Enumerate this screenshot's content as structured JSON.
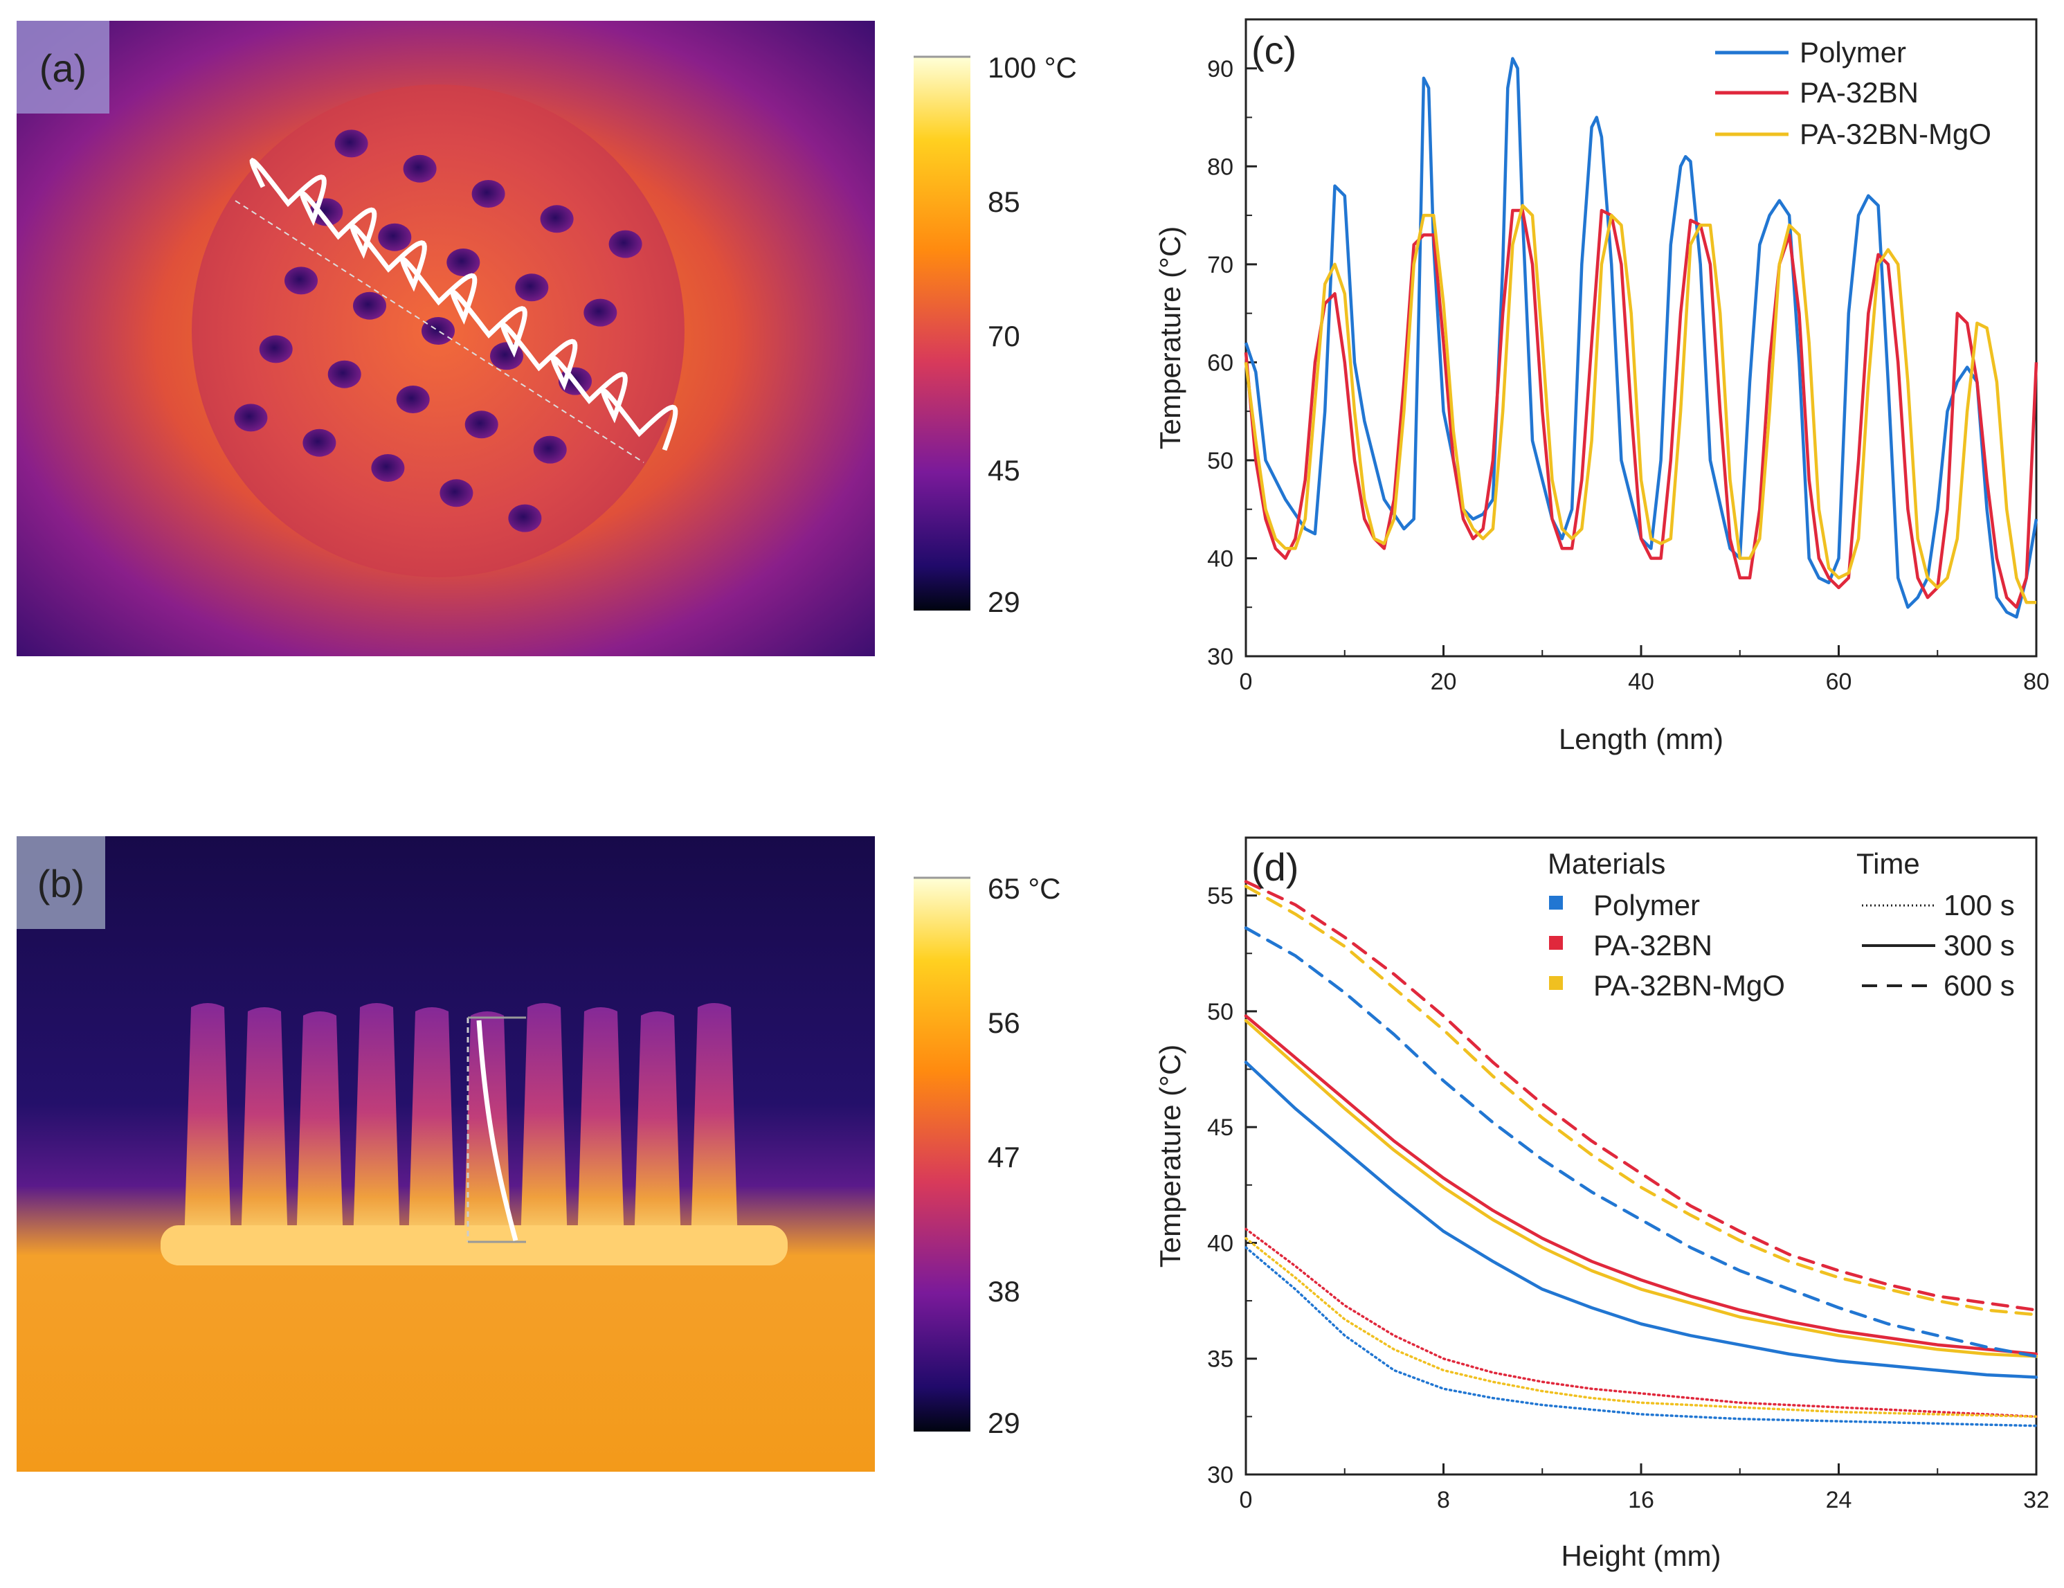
{
  "panels": {
    "a": {
      "tag": "(a)"
    },
    "b": {
      "tag": "(b)"
    },
    "c": {
      "tag": "(c)"
    },
    "d": {
      "tag": "(d)"
    }
  },
  "colorbar_a": {
    "labels": [
      "100 °C",
      "85",
      "70",
      "45",
      "29"
    ]
  },
  "colorbar_b": {
    "labels": [
      "65 °C",
      "56",
      "47",
      "38",
      "29"
    ]
  },
  "colors": {
    "polymer": "#2176d2",
    "pa32bn": "#e0283c",
    "pa32bnmgo": "#f0c020"
  },
  "chart_data": [
    {
      "id": "c",
      "type": "line",
      "xlabel": "Length (mm)",
      "ylabel": "Temperature (°C)",
      "xlim": [
        0,
        80
      ],
      "ylim": [
        30,
        95
      ],
      "xticks": [
        0,
        20,
        40,
        60,
        80
      ],
      "yticks": [
        30,
        40,
        50,
        60,
        70,
        80,
        90
      ],
      "legend": "top-right",
      "series": [
        {
          "name": "Polymer",
          "color": "#2176d2",
          "x": [
            0,
            1,
            2,
            4,
            6,
            7,
            8,
            9,
            10,
            11,
            12,
            14,
            16,
            17,
            17.5,
            18,
            18.5,
            19,
            20,
            22,
            23,
            24,
            25,
            26,
            26.5,
            27,
            27.5,
            28,
            29,
            31,
            32,
            33,
            34,
            35,
            35.5,
            36,
            37,
            38,
            40,
            41,
            42,
            43,
            44,
            44.5,
            45,
            46,
            47,
            49,
            50,
            51,
            52,
            53,
            54,
            55,
            56,
            57,
            58,
            59,
            60,
            61,
            62,
            63,
            64,
            65,
            66,
            67,
            68,
            69,
            70,
            71,
            72,
            73,
            74,
            75,
            76,
            77,
            78,
            79,
            80
          ],
          "y": [
            62,
            59,
            50,
            46,
            43,
            42.5,
            55,
            78,
            77,
            60,
            54,
            46,
            43,
            44,
            65,
            89,
            88,
            72,
            55,
            45,
            44,
            44.5,
            46,
            70,
            88,
            91,
            90,
            75,
            52,
            44,
            42,
            45,
            70,
            84,
            85,
            83,
            70,
            50,
            42,
            41,
            50,
            72,
            80,
            81,
            80.5,
            70,
            50,
            41,
            40,
            58,
            72,
            75,
            76.5,
            75,
            60,
            40,
            38,
            37.5,
            40,
            65,
            75,
            77,
            76,
            58,
            38,
            35,
            36,
            38,
            45,
            55,
            58,
            59.5,
            58,
            45,
            36,
            34.5,
            34,
            38,
            44
          ]
        },
        {
          "name": "PA-32BN",
          "color": "#e0283c",
          "x": [
            0,
            1,
            2,
            3,
            4,
            5,
            6,
            7,
            8,
            9,
            10,
            11,
            12,
            13,
            14,
            15,
            16,
            17,
            18,
            19,
            20,
            21,
            22,
            23,
            24,
            25,
            26,
            27,
            28,
            29,
            30,
            31,
            32,
            33,
            34,
            35,
            36,
            37,
            38,
            39,
            40,
            41,
            42,
            43,
            44,
            45,
            46,
            47,
            48,
            49,
            50,
            51,
            52,
            53,
            54,
            55,
            56,
            57,
            58,
            59,
            60,
            61,
            62,
            63,
            64,
            65,
            66,
            67,
            68,
            69,
            70,
            71,
            72,
            73,
            74,
            75,
            76,
            77,
            78,
            79,
            80
          ],
          "y": [
            61,
            50,
            44,
            41,
            40,
            42,
            48,
            60,
            66,
            67,
            60,
            50,
            44,
            42,
            41,
            46,
            58,
            72,
            73,
            73,
            62,
            50,
            44,
            42,
            43,
            50,
            65,
            75.5,
            75.5,
            70,
            55,
            44,
            41,
            41,
            48,
            62,
            75.5,
            75,
            70,
            55,
            42,
            40,
            40,
            50,
            65,
            74.5,
            74,
            70,
            55,
            42,
            38,
            38,
            45,
            60,
            70,
            73,
            65,
            48,
            40,
            38,
            37,
            38,
            50,
            65,
            71,
            70,
            60,
            45,
            38,
            36,
            37,
            45,
            65,
            64,
            58,
            48,
            40,
            36,
            35,
            38,
            60
          ]
        },
        {
          "name": "PA-32BN-MgO",
          "color": "#f0c020",
          "x": [
            0,
            1,
            2,
            3,
            4,
            5,
            6,
            7,
            8,
            9,
            10,
            11,
            12,
            13,
            14,
            15,
            16,
            17,
            18,
            19,
            20,
            21,
            22,
            23,
            24,
            25,
            26,
            27,
            28,
            29,
            30,
            31,
            32,
            33,
            34,
            35,
            36,
            37,
            38,
            39,
            40,
            41,
            42,
            43,
            44,
            45,
            46,
            47,
            48,
            49,
            50,
            51,
            52,
            53,
            54,
            55,
            56,
            57,
            58,
            59,
            60,
            61,
            62,
            63,
            64,
            65,
            66,
            67,
            68,
            69,
            70,
            71,
            72,
            73,
            74,
            75,
            76,
            77,
            78,
            79,
            80
          ],
          "y": [
            60,
            52,
            45,
            42,
            41,
            41,
            44,
            56,
            68,
            70,
            67,
            55,
            46,
            42,
            41.5,
            44,
            55,
            70,
            75,
            75,
            66,
            53,
            45,
            43,
            42,
            43,
            55,
            72,
            76,
            75,
            62,
            48,
            43,
            42,
            43,
            52,
            70,
            75,
            74,
            65,
            48,
            42,
            41.5,
            42,
            55,
            72,
            74,
            74,
            65,
            48,
            40,
            40,
            42,
            55,
            70,
            74,
            73,
            62,
            45,
            39,
            38,
            38.5,
            42,
            58,
            70,
            71.5,
            70,
            58,
            42,
            38,
            37,
            38,
            42,
            55,
            64,
            63.5,
            58,
            45,
            38,
            35.5,
            35.5
          ]
        }
      ]
    },
    {
      "id": "d",
      "type": "line",
      "xlabel": "Height (mm)",
      "ylabel": "Temperature (°C)",
      "xlim": [
        0,
        32
      ],
      "ylim": [
        30,
        57.5
      ],
      "xticks": [
        0,
        8,
        16,
        24,
        32
      ],
      "yticks": [
        30,
        35,
        40,
        45,
        50,
        55
      ],
      "legend": "top-right",
      "legend_materials_title": "Materials",
      "legend_time_title": "Time",
      "materials": [
        "Polymer",
        "PA-32BN",
        "PA-32BN-MgO"
      ],
      "times": [
        "100 s",
        "300 s",
        "600 s"
      ],
      "x": [
        0,
        2,
        4,
        6,
        8,
        10,
        12,
        14,
        16,
        18,
        20,
        22,
        24,
        26,
        28,
        30,
        32
      ],
      "series": [
        {
          "name": "Polymer 100 s",
          "material": "Polymer",
          "time": "100 s",
          "color": "#2176d2",
          "y": [
            39.8,
            38.0,
            36.0,
            34.5,
            33.7,
            33.3,
            33.0,
            32.8,
            32.6,
            32.5,
            32.4,
            32.35,
            32.3,
            32.25,
            32.2,
            32.15,
            32.1
          ]
        },
        {
          "name": "PA-32BN 100 s",
          "material": "PA-32BN",
          "time": "100 s",
          "color": "#e0283c",
          "y": [
            40.6,
            39.0,
            37.3,
            36.0,
            35.0,
            34.4,
            34.0,
            33.7,
            33.5,
            33.3,
            33.1,
            33.0,
            32.9,
            32.8,
            32.7,
            32.6,
            32.5
          ]
        },
        {
          "name": "PA-32BN-MgO 100 s",
          "material": "PA-32BN-MgO",
          "time": "100 s",
          "color": "#f0c020",
          "y": [
            40.2,
            38.5,
            36.7,
            35.4,
            34.5,
            34.0,
            33.6,
            33.3,
            33.1,
            33.0,
            32.9,
            32.8,
            32.7,
            32.65,
            32.6,
            32.55,
            32.5
          ]
        },
        {
          "name": "Polymer 300 s",
          "material": "Polymer",
          "time": "300 s",
          "color": "#2176d2",
          "y": [
            47.8,
            45.8,
            44.0,
            42.2,
            40.5,
            39.2,
            38.0,
            37.2,
            36.5,
            36.0,
            35.6,
            35.2,
            34.9,
            34.7,
            34.5,
            34.3,
            34.2
          ]
        },
        {
          "name": "PA-32BN 300 s",
          "material": "PA-32BN",
          "time": "300 s",
          "color": "#e0283c",
          "y": [
            49.8,
            48.0,
            46.2,
            44.4,
            42.8,
            41.4,
            40.2,
            39.2,
            38.4,
            37.7,
            37.1,
            36.6,
            36.2,
            35.9,
            35.6,
            35.4,
            35.2
          ]
        },
        {
          "name": "PA-32BN-MgO 300 s",
          "material": "PA-32BN-MgO",
          "time": "300 s",
          "color": "#f0c020",
          "y": [
            49.6,
            47.7,
            45.8,
            44.0,
            42.4,
            41.0,
            39.8,
            38.8,
            38.0,
            37.4,
            36.8,
            36.4,
            36.0,
            35.7,
            35.4,
            35.2,
            35.1
          ]
        },
        {
          "name": "Polymer 600 s",
          "material": "Polymer",
          "time": "600 s",
          "color": "#2176d2",
          "y": [
            53.6,
            52.4,
            50.8,
            49.0,
            47.0,
            45.2,
            43.6,
            42.2,
            41.0,
            39.8,
            38.8,
            38.0,
            37.2,
            36.5,
            36.0,
            35.5,
            35.1
          ]
        },
        {
          "name": "PA-32BN 600 s",
          "material": "PA-32BN",
          "time": "600 s",
          "color": "#e0283c",
          "y": [
            55.6,
            54.6,
            53.2,
            51.6,
            49.8,
            47.8,
            46.0,
            44.4,
            43.0,
            41.6,
            40.5,
            39.5,
            38.8,
            38.2,
            37.7,
            37.4,
            37.1
          ]
        },
        {
          "name": "PA-32BN-MgO 600 s",
          "material": "PA-32BN-MgO",
          "time": "600 s",
          "color": "#f0c020",
          "y": [
            55.4,
            54.2,
            52.8,
            51.0,
            49.2,
            47.2,
            45.4,
            43.8,
            42.4,
            41.2,
            40.1,
            39.2,
            38.5,
            38.0,
            37.5,
            37.1,
            36.9
          ]
        }
      ]
    }
  ]
}
